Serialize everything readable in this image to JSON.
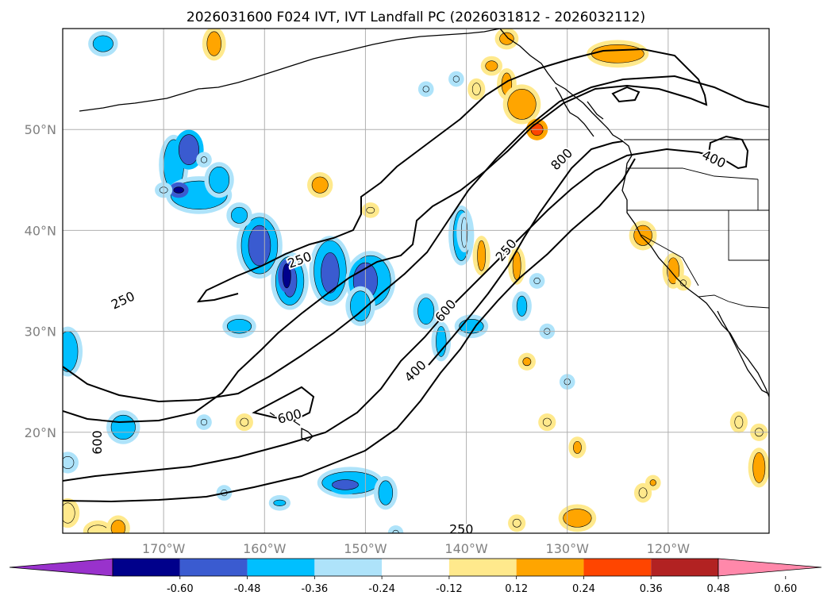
{
  "chart_data": {
    "type": "map-contour",
    "title": "2026031600 F024 IVT, IVT Landfall PC (2026031812 - 2026032112)",
    "x_axis": {
      "label": "",
      "range": [
        -180,
        -110
      ],
      "ticks": [
        -170,
        -160,
        -150,
        -140,
        -130,
        -120
      ],
      "tick_labels": [
        "170°W",
        "160°W",
        "150°W",
        "140°W",
        "130°W",
        "120°W"
      ]
    },
    "y_axis": {
      "label": "",
      "range": [
        10,
        60
      ],
      "ticks": [
        20,
        30,
        40,
        50
      ],
      "tick_labels": [
        "20°N",
        "30°N",
        "40°N",
        "50°N"
      ]
    },
    "grid": true,
    "ivt_contour_levels": [
      250,
      400,
      600,
      800
    ],
    "contour_labels": [
      {
        "text": "250",
        "lon": -174,
        "lat": 33,
        "angle": -25
      },
      {
        "text": "250",
        "lon": -156.5,
        "lat": 37,
        "angle": -20
      },
      {
        "text": "250",
        "lon": -140.5,
        "lat": 10.3,
        "angle": 0
      },
      {
        "text": "250",
        "lon": -136,
        "lat": 38,
        "angle": -50
      },
      {
        "text": "400",
        "lon": -145,
        "lat": 26,
        "angle": -45
      },
      {
        "text": "400",
        "lon": -115.5,
        "lat": 47,
        "angle": 25
      },
      {
        "text": "600",
        "lon": -142,
        "lat": 32,
        "angle": -50
      },
      {
        "text": "600",
        "lon": -176.5,
        "lat": 19,
        "angle": -90
      },
      {
        "text": "600",
        "lon": -157.5,
        "lat": 21.5,
        "angle": -15
      },
      {
        "text": "800",
        "lon": -130.5,
        "lat": 47,
        "angle": -45
      }
    ],
    "colorbar": {
      "ticks": [
        "-0.60",
        "-0.48",
        "-0.36",
        "-0.24",
        "-0.12",
        "0.12",
        "0.24",
        "0.36",
        "0.48",
        "0.60"
      ],
      "bins": [
        {
          "from": null,
          "to": -0.6,
          "color": "#9932cc"
        },
        {
          "from": -0.6,
          "to": -0.48,
          "color": "#00008b"
        },
        {
          "from": -0.48,
          "to": -0.36,
          "color": "#3a5bd0"
        },
        {
          "from": -0.36,
          "to": -0.24,
          "color": "#00bfff"
        },
        {
          "from": -0.24,
          "to": -0.12,
          "color": "#aee3fa"
        },
        {
          "from": -0.12,
          "to": 0.12,
          "color": "#ffffff"
        },
        {
          "from": 0.12,
          "to": 0.24,
          "color": "#ffe98c"
        },
        {
          "from": 0.24,
          "to": 0.36,
          "color": "#ffa500"
        },
        {
          "from": 0.36,
          "to": 0.48,
          "color": "#ff4500"
        },
        {
          "from": 0.48,
          "to": 0.6,
          "color": "#b22222"
        },
        {
          "from": 0.6,
          "to": null,
          "color": "#ff88aa"
        }
      ]
    },
    "pc_features": [
      {
        "lon": -176,
        "lat": 58.5,
        "rx": 1,
        "ry": 0.8,
        "v": -0.3
      },
      {
        "lon": -165,
        "lat": 58.5,
        "rx": 0.7,
        "ry": 1.2,
        "v": 0.3
      },
      {
        "lon": -136,
        "lat": 59,
        "rx": 0.7,
        "ry": 0.6,
        "v": 0.25
      },
      {
        "lon": -137.5,
        "lat": 56.3,
        "rx": 0.6,
        "ry": 0.5,
        "v": 0.3
      },
      {
        "lon": -136,
        "lat": 54.5,
        "rx": 0.5,
        "ry": 1.1,
        "v": 0.25
      },
      {
        "lon": -139,
        "lat": 54,
        "rx": 0.4,
        "ry": 0.6,
        "v": 0.15
      },
      {
        "lon": -144,
        "lat": 54,
        "rx": 0.3,
        "ry": 0.3,
        "v": -0.15
      },
      {
        "lon": -141,
        "lat": 55,
        "rx": 0.3,
        "ry": 0.3,
        "v": -0.15
      },
      {
        "lon": -125,
        "lat": 57.5,
        "rx": 2.6,
        "ry": 0.9,
        "v": 0.3
      },
      {
        "lon": -134.5,
        "lat": 52.5,
        "rx": 1.4,
        "ry": 1.5,
        "v": 0.3
      },
      {
        "lon": -133,
        "lat": 50,
        "rx": 0.6,
        "ry": 0.6,
        "v": 0.4
      },
      {
        "lon": -169,
        "lat": 46.5,
        "rx": 1,
        "ry": 2.5,
        "v": -0.3
      },
      {
        "lon": -167.5,
        "lat": 48,
        "rx": 1,
        "ry": 1.5,
        "v": -0.38
      },
      {
        "lon": -166.5,
        "lat": 43.5,
        "rx": 2.8,
        "ry": 1.4,
        "v": -0.3
      },
      {
        "lon": -168.5,
        "lat": 44,
        "rx": 0.5,
        "ry": 0.3,
        "v": -0.5
      },
      {
        "lon": -164.5,
        "lat": 45,
        "rx": 1,
        "ry": 1.3,
        "v": -0.3
      },
      {
        "lon": -170,
        "lat": 44,
        "rx": 0.4,
        "ry": 0.3,
        "v": -0.15
      },
      {
        "lon": -166,
        "lat": 47,
        "rx": 0.3,
        "ry": 0.3,
        "v": -0.15
      },
      {
        "lon": -154.5,
        "lat": 44.5,
        "rx": 0.8,
        "ry": 0.8,
        "v": 0.3
      },
      {
        "lon": -149.5,
        "lat": 42,
        "rx": 0.4,
        "ry": 0.3,
        "v": 0.2
      },
      {
        "lon": -160.5,
        "lat": 38.5,
        "rx": 1.8,
        "ry": 2.8,
        "v": -0.3
      },
      {
        "lon": -160.5,
        "lat": 38.5,
        "rx": 1.1,
        "ry": 2.0,
        "v": -0.45
      },
      {
        "lon": -162.5,
        "lat": 41.5,
        "rx": 0.8,
        "ry": 0.8,
        "v": -0.3
      },
      {
        "lon": -157.5,
        "lat": 35,
        "rx": 1.4,
        "ry": 2.4,
        "v": -0.3
      },
      {
        "lon": -157.5,
        "lat": 35,
        "rx": 0.7,
        "ry": 1.6,
        "v": -0.42
      },
      {
        "lon": -157.8,
        "lat": 35.5,
        "rx": 0.4,
        "ry": 1.2,
        "v": -0.55
      },
      {
        "lon": -153.5,
        "lat": 36,
        "rx": 1.6,
        "ry": 3.0,
        "v": -0.3
      },
      {
        "lon": -153.5,
        "lat": 35.8,
        "rx": 0.9,
        "ry": 2.0,
        "v": -0.42
      },
      {
        "lon": -149.5,
        "lat": 35,
        "rx": 2.0,
        "ry": 2.5,
        "v": -0.3
      },
      {
        "lon": -150,
        "lat": 35,
        "rx": 1.2,
        "ry": 1.8,
        "v": -0.42
      },
      {
        "lon": -150.5,
        "lat": 32.5,
        "rx": 1.0,
        "ry": 1.5,
        "v": -0.3
      },
      {
        "lon": -162.5,
        "lat": 30.5,
        "rx": 1.2,
        "ry": 0.7,
        "v": -0.3
      },
      {
        "lon": -144,
        "lat": 32,
        "rx": 0.8,
        "ry": 1.3,
        "v": -0.3
      },
      {
        "lon": -142.5,
        "lat": 29,
        "rx": 0.5,
        "ry": 1.5,
        "v": -0.3
      },
      {
        "lon": -140.5,
        "lat": 39.5,
        "rx": 0.8,
        "ry": 2.5,
        "v": -0.3
      },
      {
        "lon": -140.2,
        "lat": 39.8,
        "rx": 0.3,
        "ry": 1.5,
        "v": -0.15
      },
      {
        "lon": -138.5,
        "lat": 37.5,
        "rx": 0.4,
        "ry": 1.5,
        "v": 0.3
      },
      {
        "lon": -135,
        "lat": 36.5,
        "rx": 0.4,
        "ry": 1.4,
        "v": 0.25
      },
      {
        "lon": -139.5,
        "lat": 30.5,
        "rx": 1.2,
        "ry": 0.7,
        "v": -0.3
      },
      {
        "lon": -134.5,
        "lat": 32.5,
        "rx": 0.5,
        "ry": 1.0,
        "v": -0.3
      },
      {
        "lon": -133,
        "lat": 35,
        "rx": 0.3,
        "ry": 0.3,
        "v": -0.15
      },
      {
        "lon": -132,
        "lat": 30,
        "rx": 0.3,
        "ry": 0.3,
        "v": -0.15
      },
      {
        "lon": -134,
        "lat": 27,
        "rx": 0.4,
        "ry": 0.4,
        "v": 0.25
      },
      {
        "lon": -130,
        "lat": 25,
        "rx": 0.3,
        "ry": 0.3,
        "v": -0.15
      },
      {
        "lon": -132,
        "lat": 21,
        "rx": 0.4,
        "ry": 0.4,
        "v": 0.2
      },
      {
        "lon": -129,
        "lat": 18.5,
        "rx": 0.4,
        "ry": 0.6,
        "v": 0.3
      },
      {
        "lon": -179.5,
        "lat": 28,
        "rx": 1,
        "ry": 2,
        "v": -0.3
      },
      {
        "lon": -179.5,
        "lat": 17,
        "rx": 0.6,
        "ry": 0.6,
        "v": -0.15
      },
      {
        "lon": -174,
        "lat": 20.5,
        "rx": 1.2,
        "ry": 1.2,
        "v": -0.3
      },
      {
        "lon": -166,
        "lat": 21,
        "rx": 0.3,
        "ry": 0.3,
        "v": -0.15
      },
      {
        "lon": -162,
        "lat": 21,
        "rx": 0.4,
        "ry": 0.4,
        "v": 0.2
      },
      {
        "lon": -151.5,
        "lat": 15,
        "rx": 2.8,
        "ry": 1.1,
        "v": -0.3
      },
      {
        "lon": -152,
        "lat": 14.8,
        "rx": 1.3,
        "ry": 0.5,
        "v": -0.4
      },
      {
        "lon": -148,
        "lat": 14,
        "rx": 0.7,
        "ry": 1.2,
        "v": -0.3
      },
      {
        "lon": -158.5,
        "lat": 13,
        "rx": 0.6,
        "ry": 0.3,
        "v": -0.3
      },
      {
        "lon": -164,
        "lat": 14,
        "rx": 0.3,
        "ry": 0.3,
        "v": -0.15
      },
      {
        "lon": -179.5,
        "lat": 12,
        "rx": 0.7,
        "ry": 1.0,
        "v": 0.2
      },
      {
        "lon": -176.5,
        "lat": 10.2,
        "rx": 1.0,
        "ry": 0.6,
        "v": 0.2
      },
      {
        "lon": -174.5,
        "lat": 10.5,
        "rx": 0.7,
        "ry": 0.8,
        "v": 0.3
      },
      {
        "lon": -147,
        "lat": 10,
        "rx": 0.3,
        "ry": 0.3,
        "v": -0.15
      },
      {
        "lon": -135,
        "lat": 11,
        "rx": 0.4,
        "ry": 0.4,
        "v": 0.2
      },
      {
        "lon": -129,
        "lat": 11.5,
        "rx": 1.4,
        "ry": 0.9,
        "v": 0.3
      },
      {
        "lon": -122.5,
        "lat": 14,
        "rx": 0.4,
        "ry": 0.5,
        "v": 0.2
      },
      {
        "lon": -121.5,
        "lat": 15,
        "rx": 0.3,
        "ry": 0.3,
        "v": 0.3
      },
      {
        "lon": -113,
        "lat": 21,
        "rx": 0.4,
        "ry": 0.6,
        "v": 0.2
      },
      {
        "lon": -111,
        "lat": 20,
        "rx": 0.4,
        "ry": 0.4,
        "v": 0.2
      },
      {
        "lon": -111,
        "lat": 16.5,
        "rx": 0.6,
        "ry": 1.5,
        "v": 0.3
      },
      {
        "lon": -122.5,
        "lat": 39.5,
        "rx": 0.9,
        "ry": 1.0,
        "v": 0.3
      },
      {
        "lon": -119.5,
        "lat": 36,
        "rx": 0.6,
        "ry": 1.3,
        "v": 0.25
      },
      {
        "lon": -118.5,
        "lat": 34.8,
        "rx": 0.3,
        "ry": 0.3,
        "v": 0.2
      }
    ]
  }
}
